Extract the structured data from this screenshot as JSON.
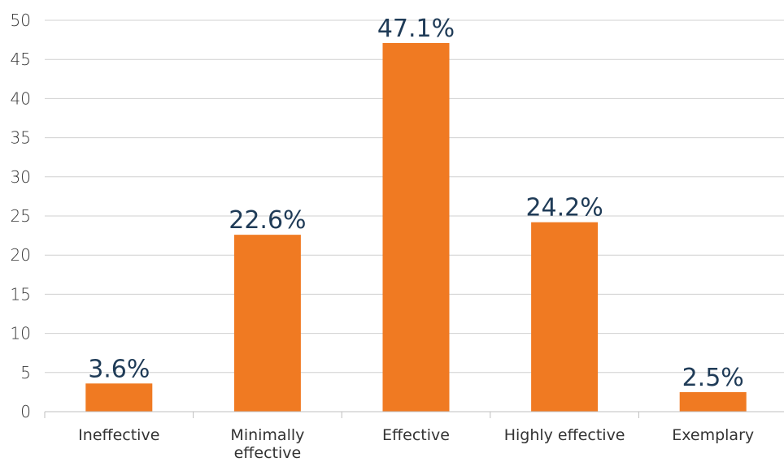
{
  "chart_data": {
    "type": "bar",
    "title": "",
    "xlabel": "",
    "ylabel": "",
    "categories": [
      [
        "Ineffective"
      ],
      [
        "Minimally",
        "effective"
      ],
      [
        "Effective"
      ],
      [
        "Highly effective"
      ],
      [
        "Exemplary"
      ]
    ],
    "values": [
      3.6,
      22.6,
      47.1,
      24.2,
      2.5
    ],
    "data_labels": [
      "3.6%",
      "22.6%",
      "47.1%",
      "24.2%",
      "2.5%"
    ],
    "ylim": [
      0,
      50
    ],
    "yticks": [
      0,
      5,
      10,
      15,
      20,
      25,
      30,
      35,
      40,
      45,
      50
    ],
    "grid": true,
    "legend": "none",
    "colors": {
      "bar": "#f07a22",
      "grid": "#d0d0d0",
      "data_label": "#1f3b57"
    }
  }
}
